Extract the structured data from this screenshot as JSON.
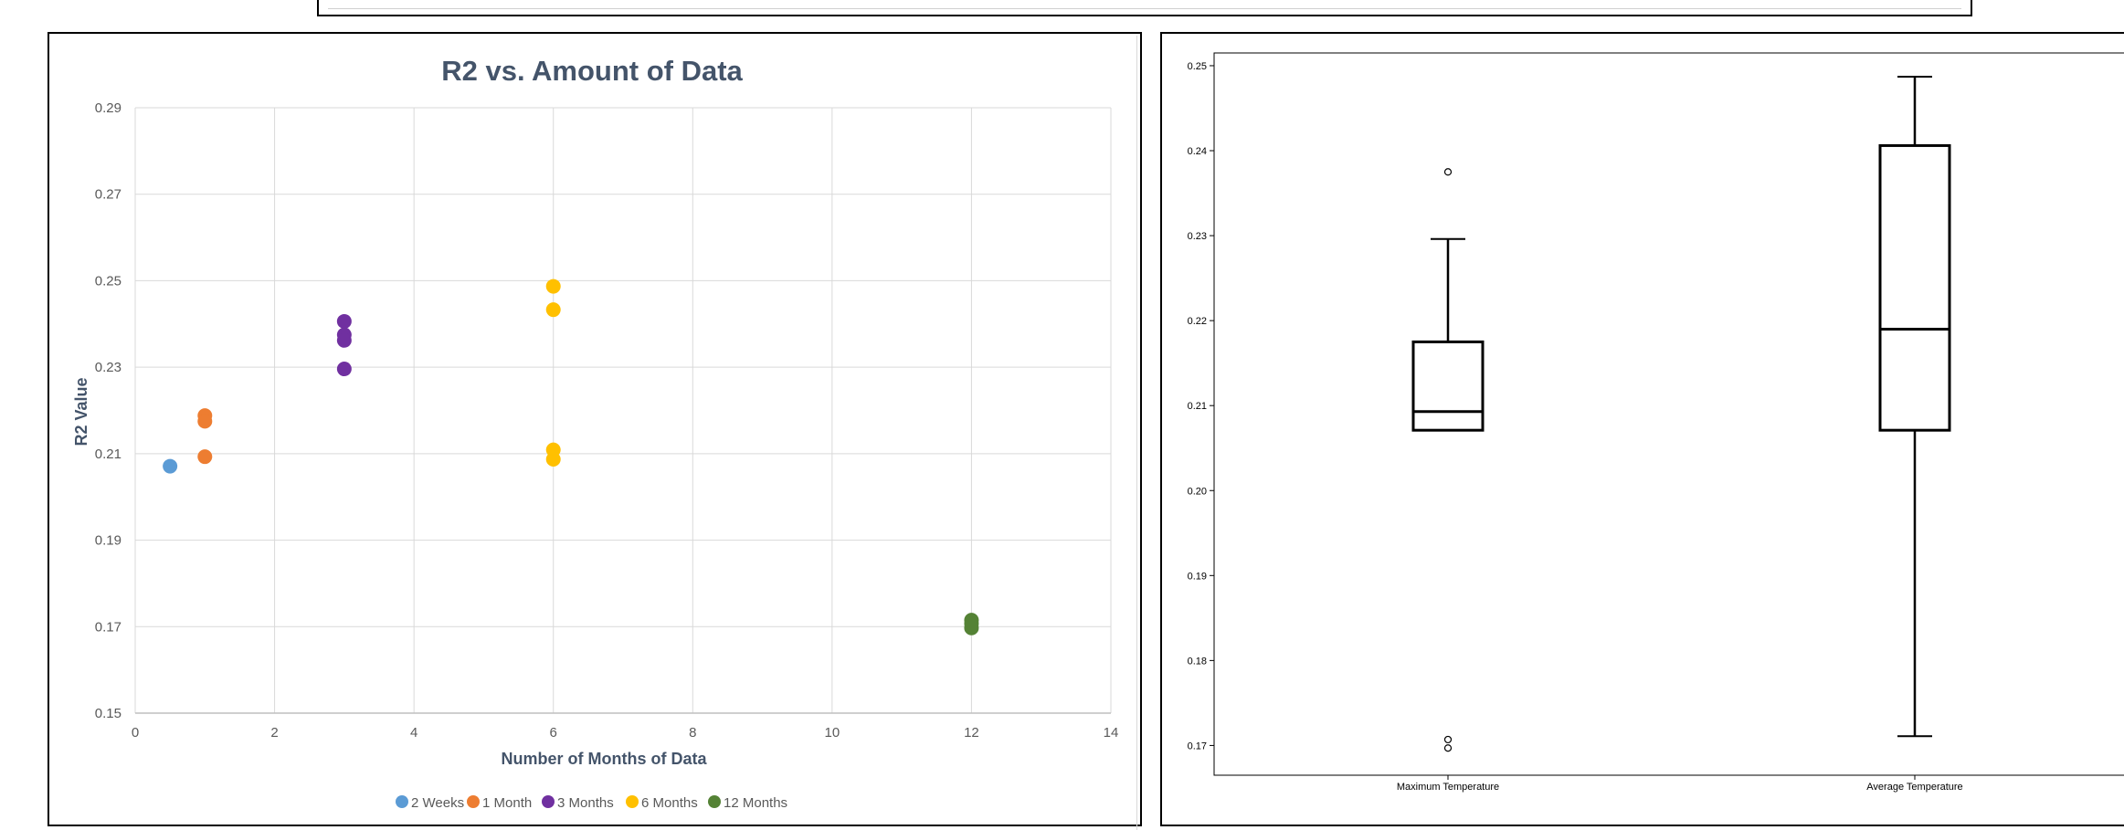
{
  "chart_data": [
    {
      "type": "scatter",
      "title": "R2 vs. Amount of Data",
      "xlabel": "Number of Months of Data",
      "ylabel": "R2 Value",
      "xlim": [
        0,
        14
      ],
      "ylim": [
        0.15,
        0.29
      ],
      "x_ticks": [
        "0",
        "2",
        "4",
        "6",
        "8",
        "10",
        "12",
        "14"
      ],
      "y_ticks": [
        "0.15",
        "0.17",
        "0.19",
        "0.21",
        "0.23",
        "0.25",
        "0.27",
        "0.29"
      ],
      "grid": true,
      "legend_position": "bottom",
      "series": [
        {
          "name": "2 Weeks",
          "color": "#5B9BD5",
          "x": [
            0.5
          ],
          "y": [
            0.2071
          ]
        },
        {
          "name": "1 Month",
          "color": "#ED7D31",
          "x": [
            1,
            1,
            1
          ],
          "y": [
            0.2188,
            0.2175,
            0.2093
          ]
        },
        {
          "name": "3 Months",
          "color": "#7030A0",
          "x": [
            3,
            3,
            3,
            3
          ],
          "y": [
            0.2406,
            0.2375,
            0.2362,
            0.2296
          ]
        },
        {
          "name": "6 Months",
          "color": "#FFC000",
          "x": [
            6,
            6,
            6,
            6
          ],
          "y": [
            0.2487,
            0.2433,
            0.2109,
            0.2087
          ]
        },
        {
          "name": "12 Months",
          "color": "#548235",
          "x": [
            12,
            12,
            12
          ],
          "y": [
            0.1715,
            0.1707,
            0.1697
          ]
        }
      ]
    },
    {
      "type": "box",
      "categories": [
        "Maximum Temperature",
        "Average Temperature"
      ],
      "ylim": [
        0.1665,
        0.2515
      ],
      "y_ticks": [
        "0.17",
        "0.18",
        "0.19",
        "0.20",
        "0.21",
        "0.22",
        "0.23",
        "0.24",
        "0.25"
      ],
      "boxes": [
        {
          "label": "Maximum Temperature",
          "whisker_low": 0.2071,
          "q1": 0.2071,
          "median": 0.2093,
          "q3": 0.2175,
          "whisker_high": 0.2296,
          "outliers": [
            0.2375,
            0.1707,
            0.1697
          ]
        },
        {
          "label": "Average Temperature",
          "whisker_low": 0.1711,
          "q1": 0.2071,
          "median": 0.219,
          "q3": 0.2406,
          "whisker_high": 0.2487,
          "outliers": []
        }
      ]
    }
  ]
}
